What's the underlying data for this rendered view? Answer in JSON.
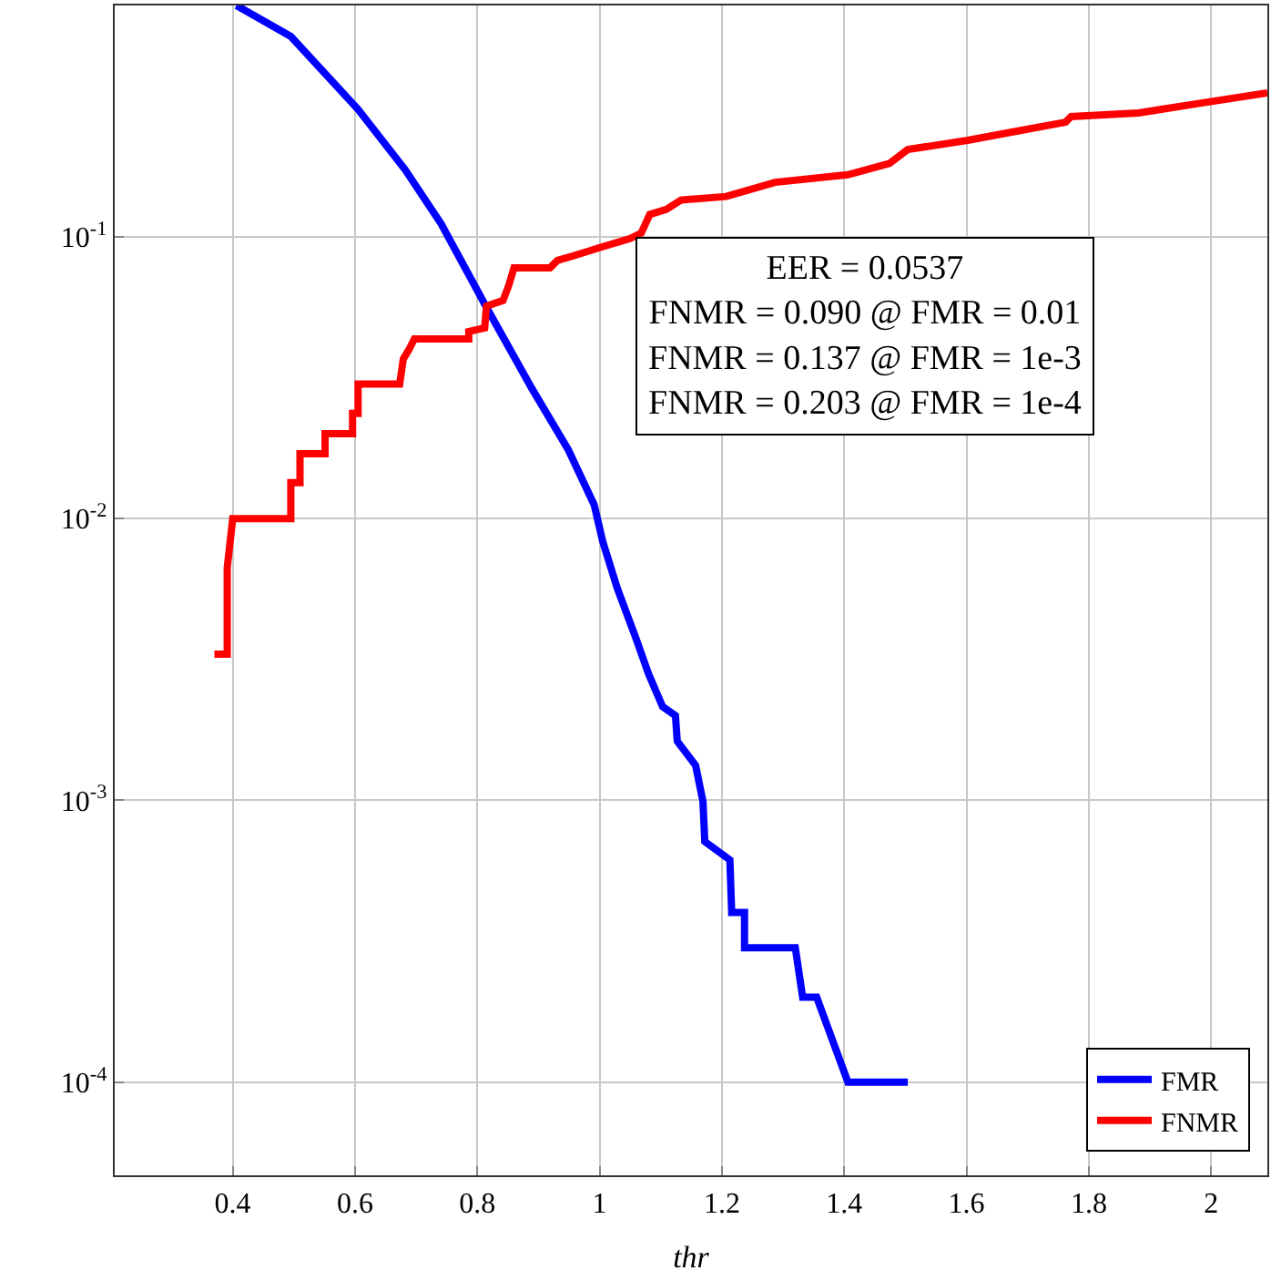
{
  "chart_data": {
    "type": "line",
    "xlabel": "thr",
    "log": "y",
    "grid": true,
    "legend": "bottom right",
    "marker": "none",
    "line_style": "solid",
    "xlim": [
      0.207,
      2.092
    ],
    "xticks": [
      0.4,
      0.6,
      0.8,
      1,
      1.2,
      1.4,
      1.6,
      1.8,
      2
    ],
    "ylim": [
      4.67e-05,
      0.662
    ],
    "yticks": [
      {
        "value": 0.1,
        "label": "10$^{-1}$"
      },
      {
        "value": 0.01,
        "label": "10$^{-2}$"
      },
      {
        "value": 0.001,
        "label": "10$^{-3}$"
      },
      {
        "value": 0.0001,
        "label": "10$^{-4}$"
      }
    ],
    "annotations": [
      "EER = 0.0537",
      "FNMR = 0.090 @ FMR = 0.01",
      "FNMR = 0.137 @ FMR = 1e-3",
      "FNMR = 0.203 @ FMR = 1e-4"
    ],
    "series": [
      {
        "name": "FMR",
        "color": "#0000ff",
        "x": [
          0.406,
          0.495,
          0.605,
          0.682,
          0.741,
          0.812,
          0.889,
          0.949,
          0.991,
          1.005,
          1.029,
          1.059,
          1.08,
          1.103,
          1.124,
          1.127,
          1.157,
          1.169,
          1.172,
          1.213,
          1.216,
          1.237,
          1.237,
          1.32,
          1.332,
          1.355,
          1.406,
          1.504
        ],
        "values": [
          0.662,
          0.514,
          0.283,
          0.173,
          0.111,
          0.0577,
          0.029,
          0.0175,
          0.0112,
          0.0083,
          0.00565,
          0.00378,
          0.00281,
          0.00215,
          0.002,
          0.00162,
          0.00133,
          0.00099,
          0.000714,
          0.000615,
          0.0004,
          0.0004,
          0.0003,
          0.0003,
          0.0002,
          0.0002,
          0.0001,
          0.0001
        ]
      },
      {
        "name": "FNMR",
        "color": "#ff0000",
        "x": [
          0.37,
          0.391,
          0.391,
          0.4,
          0.495,
          0.495,
          0.51,
          0.51,
          0.551,
          0.551,
          0.596,
          0.596,
          0.605,
          0.605,
          0.673,
          0.679,
          0.688,
          0.697,
          0.786,
          0.786,
          0.812,
          0.815,
          0.842,
          0.851,
          0.86,
          0.919,
          0.931,
          0.961,
          0.999,
          1.05,
          1.068,
          1.082,
          1.109,
          1.133,
          1.207,
          1.287,
          1.406,
          1.474,
          1.504,
          1.602,
          1.682,
          1.762,
          1.771,
          1.881,
          1.979,
          2.092
        ],
        "values": [
          0.0033,
          0.0033,
          0.0067,
          0.01,
          0.01,
          0.0134,
          0.0134,
          0.017,
          0.017,
          0.02,
          0.02,
          0.0236,
          0.0236,
          0.03,
          0.03,
          0.0369,
          0.0397,
          0.0434,
          0.0434,
          0.0461,
          0.0475,
          0.0568,
          0.0594,
          0.0668,
          0.0776,
          0.0776,
          0.0824,
          0.0861,
          0.0914,
          0.0986,
          0.103,
          0.12,
          0.125,
          0.135,
          0.139,
          0.156,
          0.166,
          0.182,
          0.204,
          0.22,
          0.237,
          0.255,
          0.267,
          0.275,
          0.297,
          0.324
        ]
      }
    ]
  }
}
